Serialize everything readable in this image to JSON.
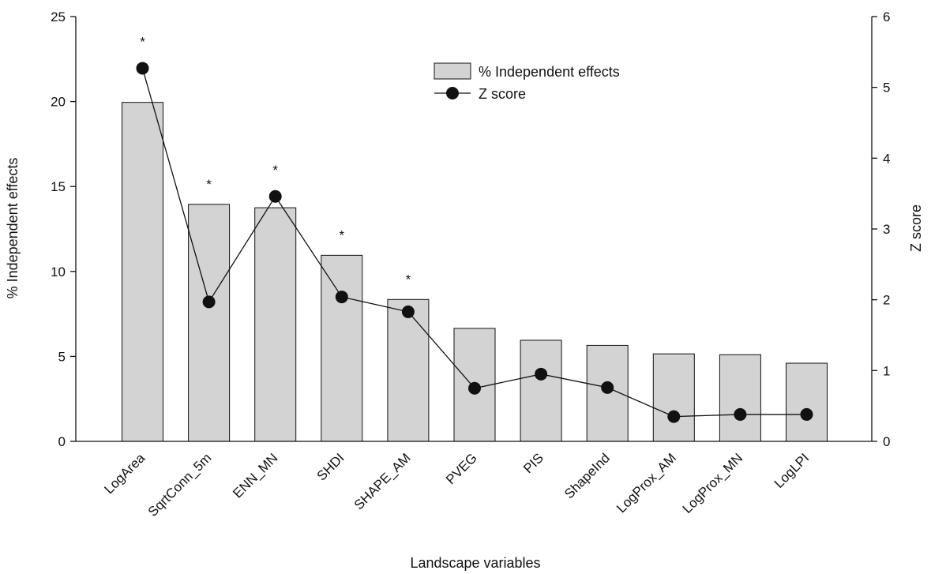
{
  "chart_data": {
    "type": "bar",
    "title": "",
    "xlabel": "Landscape variables",
    "ylabel": "% Independent effects",
    "y2label": "Z score",
    "ylim": [
      0,
      25
    ],
    "y2lim": [
      0,
      6
    ],
    "yticks": [
      "0",
      "5",
      "10",
      "15",
      "20",
      "25"
    ],
    "y2ticks": [
      "0",
      "1",
      "2",
      "3",
      "4",
      "5",
      "6"
    ],
    "categories": [
      "LogArea",
      "SqrtConn_5m",
      "ENN_MN",
      "SHDI",
      "SHAPE_AM",
      "PVEG",
      "PIS",
      "ShapeInd",
      "LogProx_AM",
      "LogProx_MN",
      "LogLPI"
    ],
    "series": [
      {
        "name": "% Independent effects",
        "kind": "bar",
        "axis": "left",
        "color": "#d3d3d3",
        "values": [
          19.95,
          13.95,
          13.75,
          10.95,
          8.35,
          6.65,
          5.95,
          5.65,
          5.15,
          5.1,
          4.6
        ]
      },
      {
        "name": "Z score",
        "kind": "line",
        "axis": "right",
        "color": "#111111",
        "values": [
          5.27,
          1.97,
          3.46,
          2.04,
          1.83,
          0.75,
          0.95,
          0.76,
          0.35,
          0.38,
          0.38
        ]
      }
    ],
    "annotations": [
      "*",
      "*",
      "*",
      "*",
      "*",
      "",
      "",
      "",
      "",
      "",
      ""
    ],
    "legend": "top-right",
    "grid": false
  }
}
